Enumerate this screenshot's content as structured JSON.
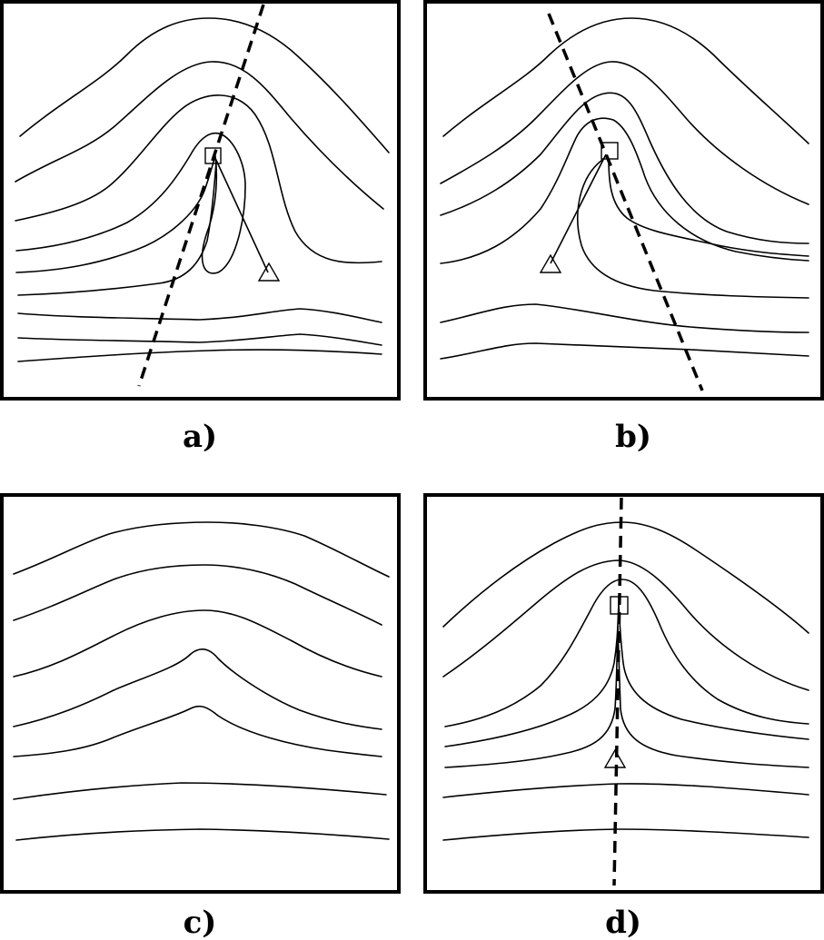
{
  "figure": {
    "panels": [
      {
        "id": "a",
        "label": "a)"
      },
      {
        "id": "b",
        "label": "b)"
      },
      {
        "id": "c",
        "label": "c)"
      },
      {
        "id": "d",
        "label": "d)"
      }
    ]
  }
}
